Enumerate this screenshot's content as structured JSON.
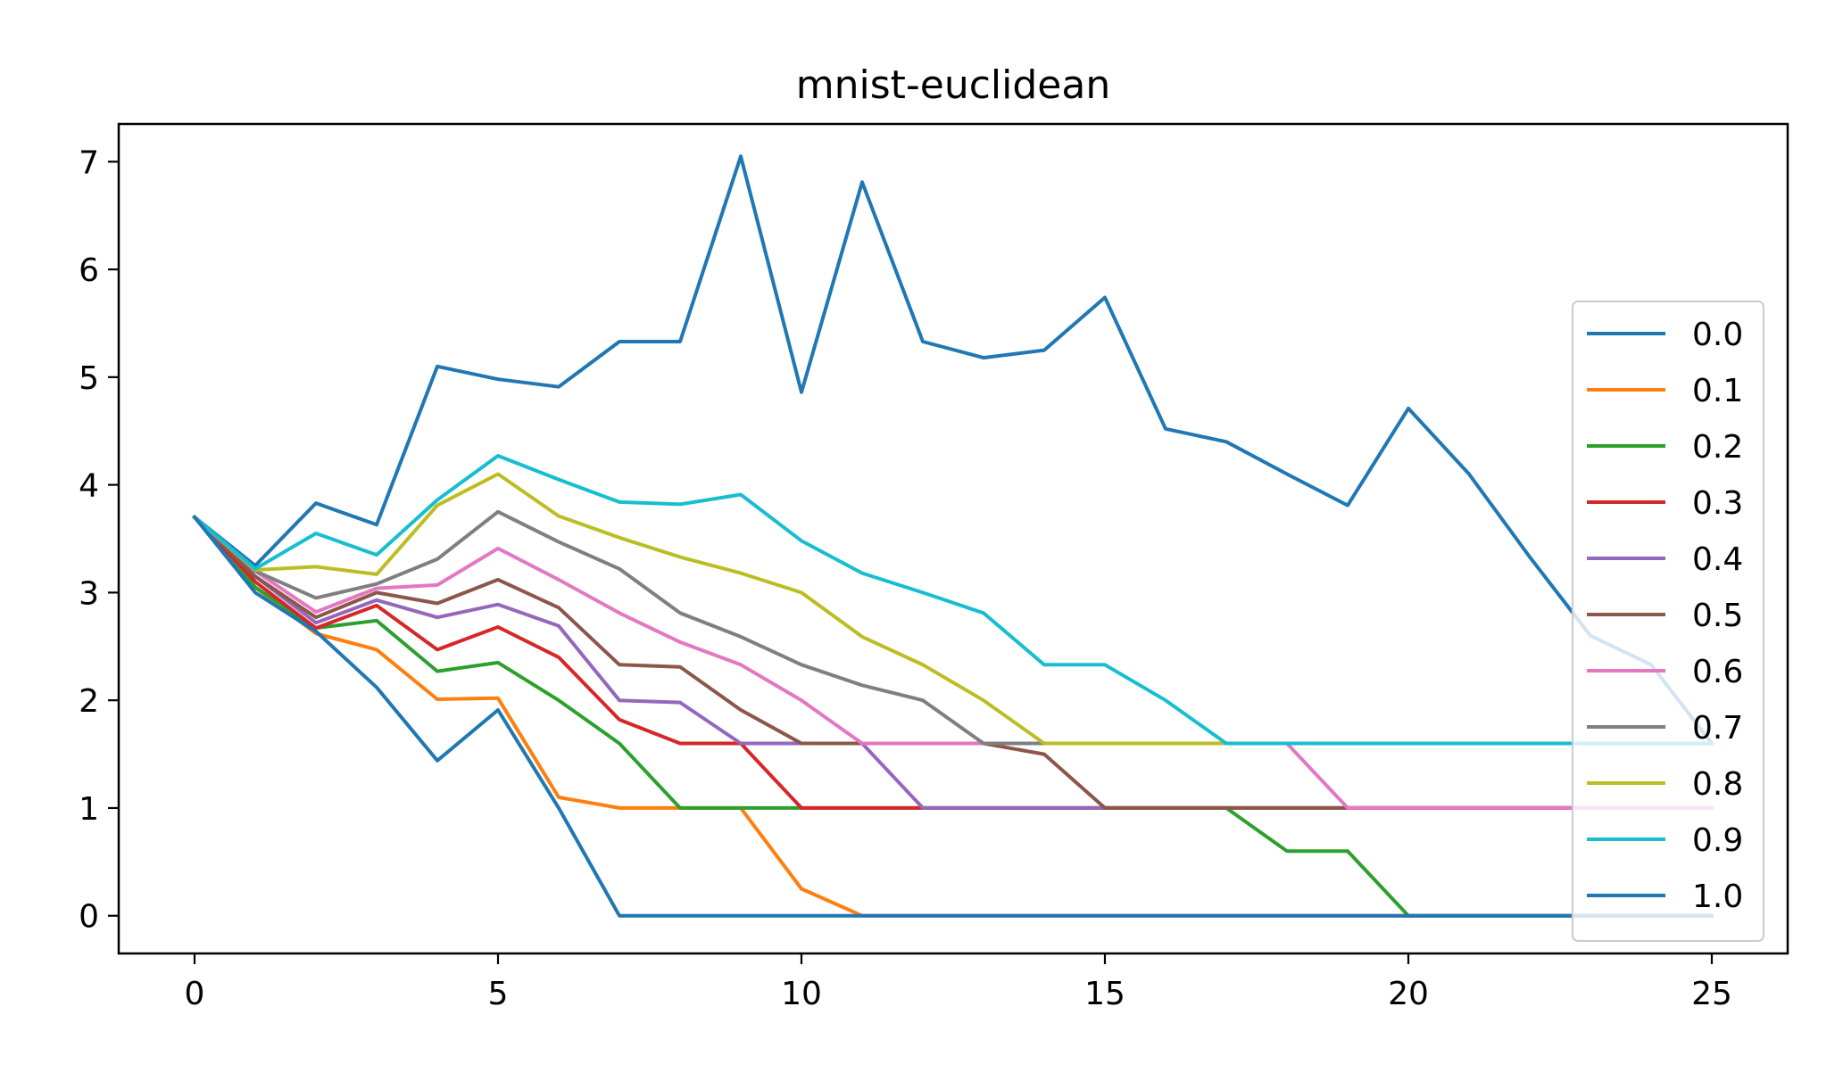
{
  "chart_data": {
    "type": "line",
    "title": "mnist-euclidean",
    "xlabel": "",
    "ylabel": "",
    "xlim": [
      -1.25,
      26.25
    ],
    "ylim": [
      -0.35,
      7.35
    ],
    "xticks": [
      0,
      5,
      10,
      15,
      20,
      25
    ],
    "yticks": [
      0,
      1,
      2,
      3,
      4,
      5,
      6,
      7
    ],
    "grid": false,
    "legend_position": "right",
    "x": [
      0,
      1,
      2,
      3,
      4,
      5,
      6,
      7,
      8,
      9,
      10,
      11,
      12,
      13,
      14,
      15,
      16,
      17,
      18,
      19,
      20,
      21,
      22,
      23,
      24,
      25
    ],
    "series": [
      {
        "name": "0.0",
        "color": "#1f77b4",
        "values": [
          3.7,
          3.25,
          3.83,
          3.63,
          5.1,
          4.98,
          4.91,
          5.33,
          5.33,
          7.05,
          4.86,
          6.81,
          5.33,
          5.18,
          5.25,
          5.74,
          4.52,
          4.4,
          4.1,
          3.81,
          4.71,
          4.1,
          3.33,
          2.6,
          2.33,
          1.6
        ]
      },
      {
        "name": "0.1",
        "color": "#ff7f0e",
        "values": [
          3.7,
          3.05,
          2.62,
          2.47,
          2.01,
          2.02,
          1.1,
          1.0,
          1.0,
          1.0,
          0.25,
          0.0,
          0.0,
          0.0,
          0.0,
          0.0,
          0.0,
          0.0,
          0.0,
          0.0,
          0.0,
          0.0,
          0.0,
          0.0,
          0.0,
          0.0
        ]
      },
      {
        "name": "0.2",
        "color": "#2ca02c",
        "values": [
          3.7,
          3.05,
          2.67,
          2.74,
          2.27,
          2.35,
          2.0,
          1.6,
          1.0,
          1.0,
          1.0,
          1.0,
          1.0,
          1.0,
          1.0,
          1.0,
          1.0,
          1.0,
          0.6,
          0.6,
          0.0,
          0.0,
          0.0,
          0.0,
          0.0,
          0.0
        ]
      },
      {
        "name": "0.3",
        "color": "#d62728",
        "values": [
          3.7,
          3.1,
          2.67,
          2.88,
          2.47,
          2.68,
          2.4,
          1.82,
          1.6,
          1.6,
          1.0,
          1.0,
          1.0,
          1.0,
          1.0,
          1.0,
          1.0,
          1.0,
          1.0,
          1.0,
          1.0,
          1.0,
          1.0,
          1.0,
          1.0,
          1.0
        ]
      },
      {
        "name": "0.4",
        "color": "#9467bd",
        "values": [
          3.7,
          3.15,
          2.72,
          2.93,
          2.77,
          2.89,
          2.69,
          2.0,
          1.98,
          1.6,
          1.6,
          1.6,
          1.0,
          1.0,
          1.0,
          1.0,
          1.0,
          1.0,
          1.0,
          1.0,
          1.0,
          1.0,
          1.0,
          1.0,
          1.0,
          1.0
        ]
      },
      {
        "name": "0.5",
        "color": "#8c564b",
        "values": [
          3.7,
          3.15,
          2.77,
          3.0,
          2.9,
          3.12,
          2.86,
          2.33,
          2.31,
          1.91,
          1.6,
          1.6,
          1.6,
          1.6,
          1.5,
          1.0,
          1.0,
          1.0,
          1.0,
          1.0,
          1.0,
          1.0,
          1.0,
          1.0,
          1.0,
          1.0
        ]
      },
      {
        "name": "0.6",
        "color": "#e377c2",
        "values": [
          3.7,
          3.2,
          2.82,
          3.04,
          3.07,
          3.41,
          3.12,
          2.81,
          2.54,
          2.33,
          2.0,
          1.6,
          1.6,
          1.6,
          1.6,
          1.6,
          1.6,
          1.6,
          1.6,
          1.0,
          1.0,
          1.0,
          1.0,
          1.0,
          1.0,
          1.0
        ]
      },
      {
        "name": "0.7",
        "color": "#7f7f7f",
        "values": [
          3.7,
          3.2,
          2.95,
          3.08,
          3.31,
          3.75,
          3.47,
          3.22,
          2.81,
          2.59,
          2.33,
          2.14,
          2.0,
          1.6,
          1.6,
          1.6,
          1.6,
          1.6,
          1.6,
          1.6,
          1.6,
          1.6,
          1.6,
          1.6,
          1.6,
          1.6
        ]
      },
      {
        "name": "0.8",
        "color": "#bcbd22",
        "values": [
          3.7,
          3.21,
          3.24,
          3.17,
          3.81,
          4.1,
          3.71,
          3.51,
          3.33,
          3.18,
          3.0,
          2.59,
          2.33,
          2.0,
          1.6,
          1.6,
          1.6,
          1.6,
          1.6,
          1.6,
          1.6,
          1.6,
          1.6,
          1.6,
          1.6,
          1.6
        ]
      },
      {
        "name": "0.9",
        "color": "#17becf",
        "values": [
          3.7,
          3.22,
          3.55,
          3.35,
          3.86,
          4.27,
          4.05,
          3.84,
          3.82,
          3.91,
          3.48,
          3.18,
          3.0,
          2.81,
          2.33,
          2.33,
          2.0,
          1.6,
          1.6,
          1.6,
          1.6,
          1.6,
          1.6,
          1.6,
          1.6,
          1.6
        ]
      },
      {
        "name": "1.0",
        "color": "#1f77b4",
        "values": [
          3.7,
          3.0,
          2.64,
          2.12,
          1.44,
          1.91,
          1.0,
          0.0,
          0.0,
          0.0,
          0.0,
          0.0,
          0.0,
          0.0,
          0.0,
          0.0,
          0.0,
          0.0,
          0.0,
          0.0,
          0.0,
          0.0,
          0.0,
          0.0,
          0.0,
          0.0
        ]
      }
    ]
  }
}
